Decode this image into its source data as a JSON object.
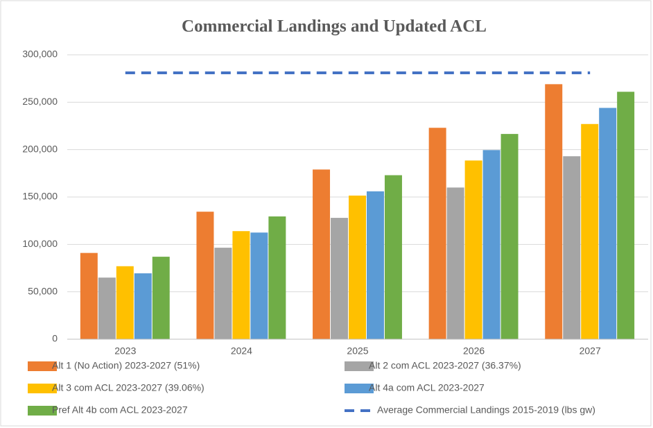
{
  "chart_data": {
    "type": "bar",
    "title": "Commercial Landings and Updated ACL",
    "categories": [
      "2023",
      "2024",
      "2025",
      "2026",
      "2027"
    ],
    "series": [
      {
        "name": "Alt 1 (No Action) 2023-2027 (51%)",
        "color": "#ed7d31",
        "values": [
          91000,
          134500,
          179000,
          223000,
          269000
        ]
      },
      {
        "name": "Alt 2 com ACL 2023-2027 (36.37%)",
        "color": "#a5a5a5",
        "values": [
          65000,
          96500,
          128000,
          160000,
          193000
        ]
      },
      {
        "name": "Alt 3 com ACL 2023-2027 (39.06%)",
        "color": "#ffc000",
        "values": [
          77000,
          114000,
          151500,
          188500,
          227000
        ]
      },
      {
        "name": "Alt 4a com ACL 2023-2027",
        "color": "#5b9bd5",
        "values": [
          69500,
          112500,
          156000,
          199500,
          244000
        ]
      },
      {
        "name": "Pref Alt 4b com ACL 2023-2027",
        "color": "#70ad47",
        "values": [
          87000,
          129500,
          173000,
          216500,
          261000
        ]
      },
      {
        "name": "Average Commercial Landings 2015-2019 (lbs gw)",
        "color": "#4472c4",
        "kind": "line",
        "dashed": true,
        "values": [
          281000,
          281000,
          281000,
          281000,
          281000
        ]
      }
    ],
    "ylim": [
      0,
      300000
    ],
    "yticks": [
      0,
      {
        "value": 50000,
        "label": "50,000"
      },
      {
        "value": 100000,
        "label": "100,000"
      },
      {
        "value": 150000,
        "label": "150,000"
      },
      {
        "value": 200000,
        "label": "200,000"
      },
      {
        "value": 250000,
        "label": "250,000"
      },
      {
        "value": 300000,
        "label": "300,000"
      }
    ],
    "grid": true
  }
}
